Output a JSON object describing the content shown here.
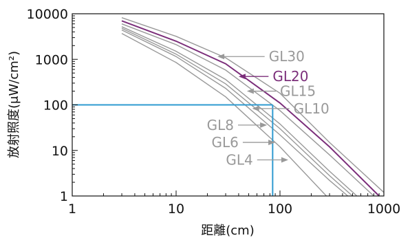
{
  "chart_data": {
    "type": "line",
    "xscale": "log",
    "yscale": "log",
    "xlim": [
      1,
      1000
    ],
    "ylim": [
      1,
      10000
    ],
    "xlabel": "距離(cm)",
    "ylabel": "放射照度(μW/cm²)",
    "xticks": [
      "1",
      "10",
      "100",
      "1000"
    ],
    "yticks": [
      "1",
      "10",
      "100",
      "1000",
      "10000"
    ],
    "grid": false,
    "colors": {
      "gray": "#999999",
      "highlight": "#7b2e7a",
      "guide": "#2e9ad0"
    },
    "series": [
      {
        "name": "GL30",
        "highlight": false,
        "x": [
          3,
          10,
          30,
          100,
          300,
          1000
        ],
        "y": [
          8200,
          3200,
          1080,
          180,
          15,
          1.2
        ]
      },
      {
        "name": "GL20",
        "highlight": true,
        "x": [
          3,
          10,
          30,
          100,
          300,
          900
        ],
        "y": [
          7000,
          2500,
          800,
          110,
          12,
          1
        ]
      },
      {
        "name": "GL15",
        "highlight": false,
        "x": [
          3,
          10,
          30,
          100,
          300,
          800
        ],
        "y": [
          6000,
          2100,
          580,
          75,
          8,
          1
        ]
      },
      {
        "name": "GL10",
        "highlight": false,
        "x": [
          3,
          10,
          30,
          100,
          300,
          550
        ],
        "y": [
          5200,
          1500,
          360,
          38,
          3.5,
          1
        ]
      },
      {
        "name": "GL8",
        "highlight": false,
        "x": [
          3,
          10,
          30,
          100,
          300,
          500
        ],
        "y": [
          4800,
          1300,
          290,
          30,
          2.8,
          1
        ]
      },
      {
        "name": "GL6",
        "highlight": false,
        "x": [
          3,
          10,
          30,
          100,
          300,
          450
        ],
        "y": [
          4400,
          1150,
          230,
          22,
          2.2,
          1
        ]
      },
      {
        "name": "GL4",
        "highlight": false,
        "x": [
          3,
          10,
          30,
          100,
          280
        ],
        "y": [
          3700,
          850,
          150,
          12,
          1
        ]
      }
    ],
    "annotations": [
      {
        "text": "GL30",
        "series": "GL30",
        "target": [
          25,
          1150
        ],
        "label_at": [
          78,
          1150
        ]
      },
      {
        "text": "GL20",
        "series": "GL20",
        "target": [
          40,
          420
        ],
        "label_at": [
          85,
          420
        ]
      },
      {
        "text": "GL15",
        "series": "GL15",
        "target": [
          48,
          200
        ],
        "label_at": [
          100,
          200
        ]
      },
      {
        "text": "GL10",
        "series": "GL10",
        "target": [
          54,
          83
        ],
        "label_at": [
          135,
          83
        ]
      },
      {
        "text": "GL8",
        "series": "GL8",
        "target": [
          75,
          36
        ],
        "label_at": [
          36,
          36
        ]
      },
      {
        "text": "GL6",
        "series": "GL6",
        "target": [
          90,
          15
        ],
        "label_at": [
          40,
          15
        ]
      },
      {
        "text": "GL4",
        "series": "GL4",
        "target": [
          120,
          6.2
        ],
        "label_at": [
          55,
          6.2
        ]
      }
    ],
    "reference": {
      "x": 85,
      "y": 100
    }
  }
}
